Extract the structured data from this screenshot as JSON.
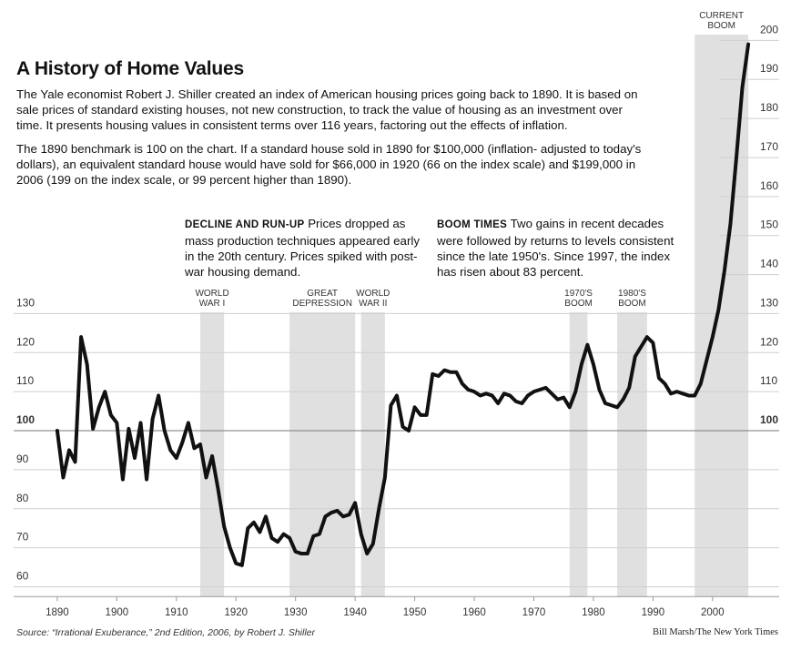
{
  "chart_data": {
    "type": "line",
    "title": "A History of Home Values",
    "intro": [
      "The Yale economist Robert J. Shiller created an index of American housing prices going back to 1890. It is based on sale prices of standard existing houses, not new construction, to track the value of housing as an investment over time. It presents housing values in consistent terms over 116 years, factoring out the effects of inflation.",
      "The 1890 benchmark is 100 on the chart. If a standard house sold in 1890 for $100,000 (inflation- adjusted to today's dollars), an equivalent standard house would have sold for $66,000 in 1920 (66 on the index scale) and $199,000 in 2006 (199 on the index scale, or 99 percent higher than 1890)."
    ],
    "annotations": [
      {
        "heading": "DECLINE AND RUN-UP",
        "text": "Prices dropped as mass production techniques appeared early in the 20th century. Prices spiked with post-war housing demand."
      },
      {
        "heading": "BOOM TIMES",
        "text": "Two gains in recent decades were followed by returns to levels consistent since the late 1950's. Since 1997, the index has risen about 83 percent."
      }
    ],
    "periods": [
      {
        "label": [
          "WORLD",
          "WAR I"
        ],
        "start": 1914,
        "end": 1918
      },
      {
        "label": [
          "GREAT",
          "DEPRESSION"
        ],
        "start": 1929,
        "end": 1940
      },
      {
        "label": [
          "WORLD",
          "WAR II"
        ],
        "start": 1941,
        "end": 1945
      },
      {
        "label": [
          "1970'S",
          "BOOM"
        ],
        "start": 1976,
        "end": 1979
      },
      {
        "label": [
          "1980'S",
          "BOOM"
        ],
        "start": 1984,
        "end": 1989
      },
      {
        "label": [
          "CURRENT",
          "BOOM"
        ],
        "start": 1997,
        "end": 2006
      }
    ],
    "x": [
      1890,
      1891,
      1892,
      1893,
      1894,
      1895,
      1896,
      1897,
      1898,
      1899,
      1900,
      1901,
      1902,
      1903,
      1904,
      1905,
      1906,
      1907,
      1908,
      1909,
      1910,
      1911,
      1912,
      1913,
      1914,
      1915,
      1916,
      1917,
      1918,
      1919,
      1920,
      1921,
      1922,
      1923,
      1924,
      1925,
      1926,
      1927,
      1928,
      1929,
      1930,
      1931,
      1932,
      1933,
      1934,
      1935,
      1936,
      1937,
      1938,
      1939,
      1940,
      1941,
      1942,
      1943,
      1944,
      1945,
      1946,
      1947,
      1948,
      1949,
      1950,
      1951,
      1952,
      1953,
      1954,
      1955,
      1956,
      1957,
      1958,
      1959,
      1960,
      1961,
      1962,
      1963,
      1964,
      1965,
      1966,
      1967,
      1968,
      1969,
      1970,
      1971,
      1972,
      1973,
      1974,
      1975,
      1976,
      1977,
      1978,
      1979,
      1980,
      1981,
      1982,
      1983,
      1984,
      1985,
      1986,
      1987,
      1988,
      1989,
      1990,
      1991,
      1992,
      1993,
      1994,
      1995,
      1996,
      1997,
      1998,
      1999,
      2000,
      2001,
      2002,
      2003,
      2004,
      2005,
      2006
    ],
    "values": [
      100,
      88,
      95,
      92,
      124,
      117,
      100.5,
      106,
      110,
      104,
      102,
      87.5,
      100.5,
      93,
      102,
      87.5,
      103,
      109,
      100,
      95,
      93,
      97,
      102,
      95.5,
      96.5,
      88,
      93.5,
      85,
      75.5,
      70,
      66,
      65.5,
      75,
      76.5,
      74,
      78,
      72.5,
      71.5,
      73.5,
      72.5,
      69,
      68.5,
      68.5,
      73,
      73.5,
      78,
      79,
      79.5,
      78,
      78.5,
      81.5,
      73.5,
      68.5,
      71,
      80,
      88,
      106.5,
      109,
      101,
      100,
      106,
      104,
      104,
      114.5,
      114,
      115.5,
      115,
      115,
      112,
      110.5,
      110,
      109,
      109.5,
      109,
      107,
      109.5,
      109,
      107.5,
      107,
      109,
      110,
      110.5,
      111,
      109.5,
      108,
      108.5,
      106,
      110,
      117,
      122,
      117,
      110.5,
      107,
      106.5,
      106,
      108,
      111,
      119,
      121.5,
      124,
      122.5,
      113.5,
      112,
      109.5,
      110,
      109.5,
      109,
      109,
      112,
      118,
      124,
      131,
      141,
      153,
      170,
      188,
      199
    ],
    "color": "#111111",
    "xlim": [
      1886.5,
      2009.5
    ],
    "ylim": [
      57.5,
      202
    ],
    "xticks": [
      1890,
      1900,
      1910,
      1920,
      1930,
      1940,
      1950,
      1960,
      1970,
      1980,
      1990,
      2000
    ],
    "yticks": [
      60,
      70,
      80,
      90,
      100,
      110,
      120,
      130,
      140,
      150,
      160,
      170,
      180,
      190,
      200
    ],
    "grid": true,
    "source": "Source: “Irrational Exuberance,” 2nd Edition, 2006, by Robert J. Shiller",
    "credit": "Bill Marsh/The New York Times"
  }
}
